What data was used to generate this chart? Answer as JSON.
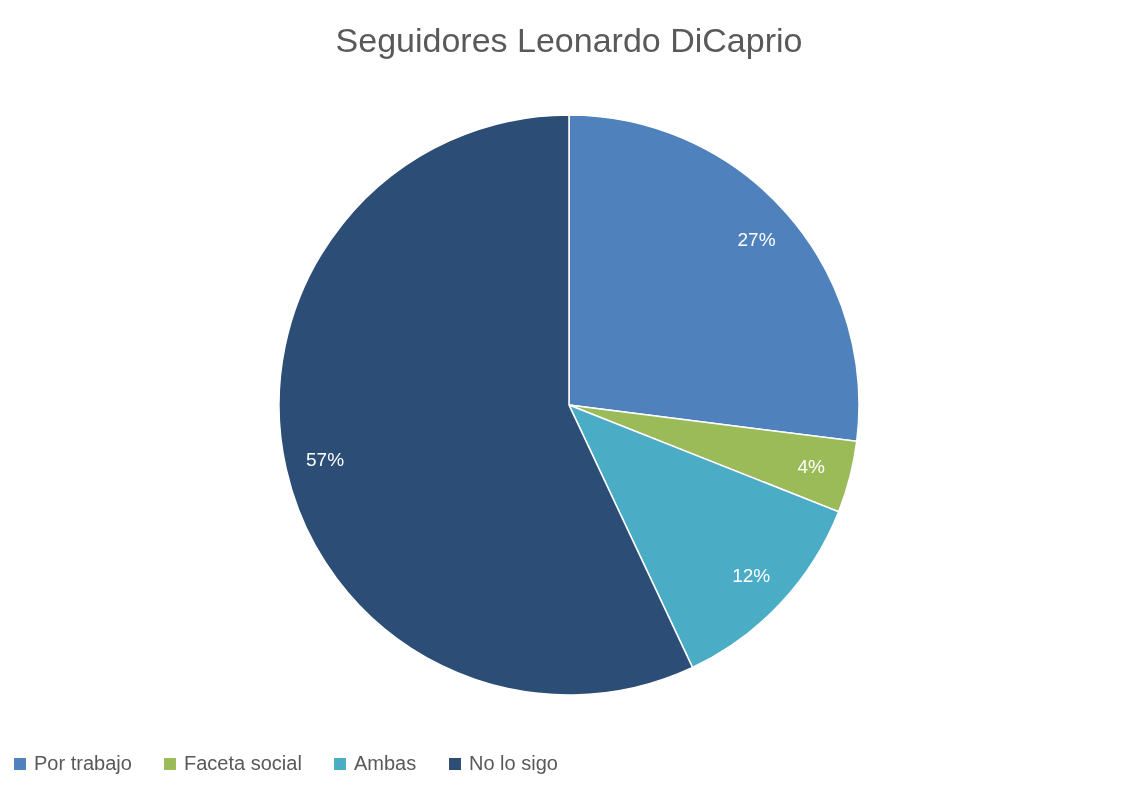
{
  "chart_data": {
    "type": "pie",
    "title": "Seguidores Leonardo DiCaprio",
    "categories": [
      "Por trabajo",
      "Faceta social",
      "Ambas",
      "No lo sigo"
    ],
    "values": [
      27,
      4,
      12,
      57
    ],
    "colors": [
      "#4f81bd",
      "#9bbb59",
      "#4bacc6",
      "#2c4d75"
    ],
    "value_labels": [
      "27%",
      "4%",
      "12%",
      "57%"
    ],
    "legend": "bottom"
  }
}
